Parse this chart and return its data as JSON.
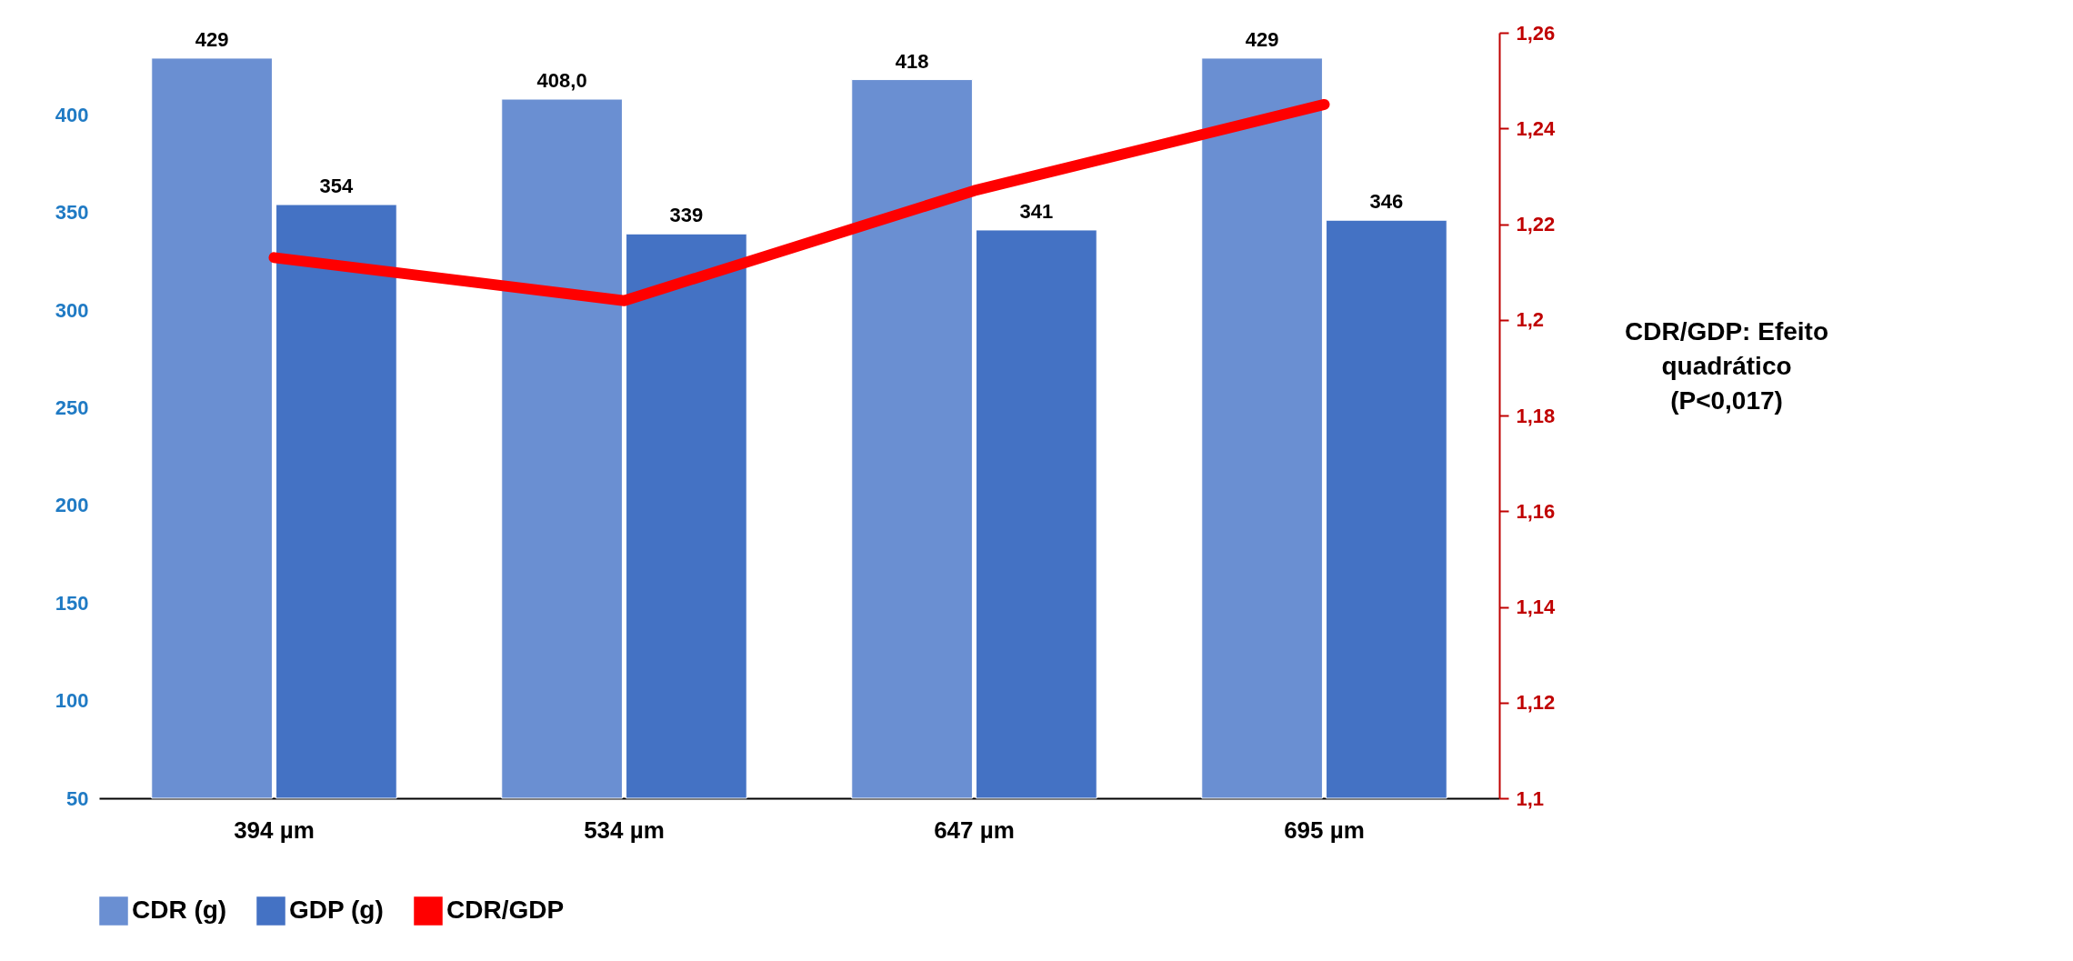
{
  "chart_data": {
    "type": "bar",
    "categories": [
      "394 µm",
      "534 µm",
      "647 µm",
      "695 µm"
    ],
    "series": [
      {
        "name": "CDR (g)",
        "color": "#6a8fd2",
        "values": [
          429,
          408,
          418,
          429
        ],
        "value_labels": [
          "429",
          "408,0",
          "418",
          "429"
        ]
      },
      {
        "name": "GDP (g)",
        "color": "#4472c4",
        "values": [
          354,
          339,
          341,
          346
        ],
        "value_labels": [
          "354",
          "339",
          "341",
          "346"
        ]
      },
      {
        "name": "CDR/GDP",
        "type": "line",
        "axis": "y2",
        "color": "#ff0000",
        "values": [
          1.213,
          1.204,
          1.227,
          1.245
        ]
      }
    ],
    "ylim": [
      50,
      442
    ],
    "yticks": [
      50,
      100,
      150,
      200,
      250,
      300,
      350,
      400
    ],
    "y2lim": [
      1.1,
      1.26
    ],
    "y2ticks": [
      {
        "value": 1.1,
        "label": "1,1"
      },
      {
        "value": 1.12,
        "label": "1,12"
      },
      {
        "value": 1.14,
        "label": "1,14"
      },
      {
        "value": 1.16,
        "label": "1,16"
      },
      {
        "value": 1.18,
        "label": "1,18"
      },
      {
        "value": 1.2,
        "label": "1,2"
      },
      {
        "value": 1.22,
        "label": "1,22"
      },
      {
        "value": 1.24,
        "label": "1,24"
      },
      {
        "value": 1.26,
        "label": "1,26"
      }
    ],
    "annotations": [
      "CDR/GDP: Efeito quadrático (P<0,017)"
    ],
    "grid": false,
    "legend": "bottom"
  }
}
